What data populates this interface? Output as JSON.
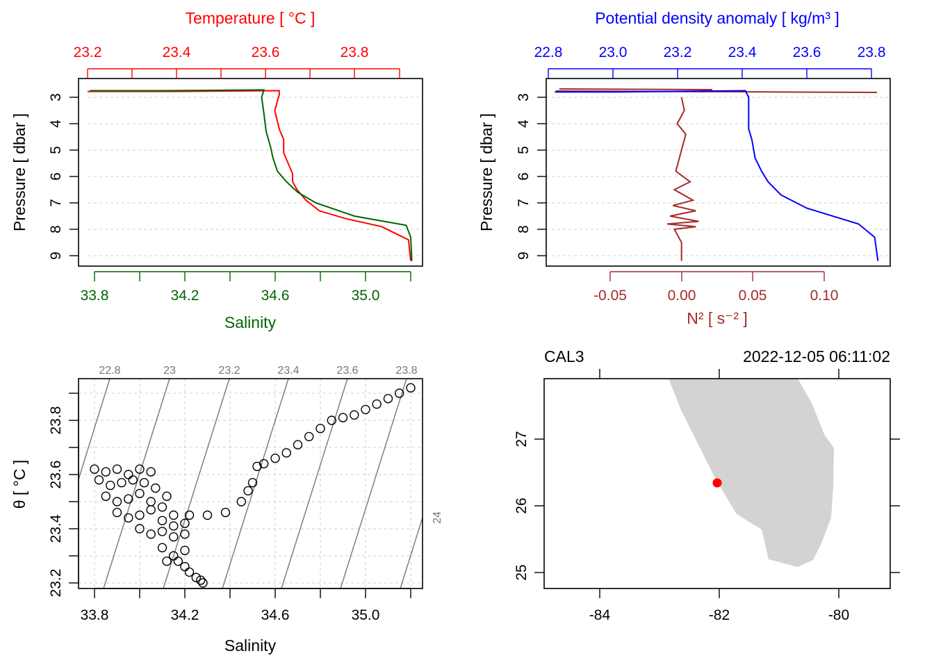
{
  "colors": {
    "temperature": "#ff0000",
    "salinity": "#006400",
    "density": "#0000ff",
    "n2": "#a52a2a",
    "land": "#d3d3d3",
    "station": "#ff0000",
    "points": "#000000",
    "isopycnal": "#777777",
    "grid": "#cfcfcf"
  },
  "panels": {
    "ts_profile": {
      "top_axis_title": "Temperature [ °C ]",
      "bottom_axis_title": "Salinity",
      "y_axis_title": "Pressure [ dbar ]",
      "temperature_ticks": [
        "23.2",
        "23.4",
        "23.6",
        "23.8"
      ],
      "salinity_ticks": [
        "33.8",
        "34.2",
        "34.6",
        "35.0"
      ],
      "pressure_ticks": [
        "3",
        "4",
        "5",
        "6",
        "7",
        "8",
        "9"
      ]
    },
    "density_profile": {
      "top_axis_title": "Potential density anomaly [ kg/m³ ]",
      "bottom_axis_title": "N² [ s⁻² ]",
      "y_axis_title": "Pressure [ dbar ]",
      "density_ticks": [
        "22.8",
        "23.0",
        "23.2",
        "23.4",
        "23.6",
        "23.8"
      ],
      "n2_ticks": [
        "-0.05",
        "0.00",
        "0.05",
        "0.10"
      ],
      "pressure_ticks": [
        "3",
        "4",
        "5",
        "6",
        "7",
        "8",
        "9"
      ]
    },
    "ts_diagram": {
      "x_axis_title": "Salinity",
      "y_axis_title": "θ [ °C ]",
      "x_ticks": [
        "33.8",
        "34.2",
        "34.6",
        "35.0"
      ],
      "y_ticks": [
        "23.2",
        "23.4",
        "23.6",
        "23.8"
      ],
      "isopycnal_labels": [
        "22.8",
        "23",
        "23.2",
        "23.4",
        "23.6",
        "23.8",
        "24"
      ]
    },
    "map": {
      "station": "CAL3",
      "datetime": "2022-12-05 06:11:02",
      "lon_ticks": [
        "-84",
        "-82",
        "-80"
      ],
      "lat_ticks": [
        "25",
        "26",
        "27"
      ]
    }
  },
  "chart_data": [
    {
      "type": "line",
      "title": "",
      "y_axis": "Pressure [ dbar ]",
      "ylim": [
        9.3,
        2.4
      ],
      "series": [
        {
          "name": "Temperature [ °C ]",
          "axis": "top",
          "xlim": [
            23.17,
            23.93
          ],
          "x": [
            23.2,
            23.4,
            23.63,
            23.63,
            23.62,
            23.63,
            23.64,
            23.64,
            23.65,
            23.66,
            23.66,
            23.67,
            23.69,
            23.72,
            23.78,
            23.86,
            23.92,
            23.925
          ],
          "y": [
            2.78,
            2.78,
            2.75,
            2.9,
            3.5,
            4.2,
            4.6,
            5.1,
            5.5,
            5.9,
            6.2,
            6.5,
            6.9,
            7.3,
            7.6,
            7.9,
            8.4,
            9.2
          ]
        },
        {
          "name": "Salinity",
          "axis": "bottom",
          "xlim": [
            33.74,
            35.26
          ],
          "x": [
            33.78,
            34.1,
            34.55,
            34.54,
            34.55,
            34.56,
            34.58,
            34.59,
            34.61,
            34.65,
            34.7,
            34.78,
            34.95,
            35.18,
            35.2,
            35.205
          ],
          "y": [
            2.75,
            2.75,
            2.72,
            3.0,
            3.6,
            4.3,
            4.9,
            5.3,
            5.8,
            6.2,
            6.6,
            7.0,
            7.5,
            7.85,
            8.3,
            9.2
          ]
        }
      ]
    },
    {
      "type": "line",
      "title": "",
      "y_axis": "Pressure [ dbar ]",
      "ylim": [
        9.3,
        2.4
      ],
      "series": [
        {
          "name": "Potential density anomaly [ kg/m³ ]",
          "axis": "top",
          "xlim": [
            22.8,
            23.82
          ],
          "x": [
            22.82,
            23.0,
            23.41,
            23.42,
            23.42,
            23.43,
            23.44,
            23.46,
            23.48,
            23.52,
            23.6,
            23.76,
            23.81,
            23.82
          ],
          "y": [
            2.8,
            2.8,
            2.75,
            3.0,
            4.2,
            4.6,
            5.3,
            5.8,
            6.2,
            6.7,
            7.2,
            7.8,
            8.3,
            9.2
          ]
        },
        {
          "name": "N² [ s⁻² ]",
          "axis": "bottom",
          "xlim": [
            -0.095,
            0.14
          ],
          "x": [
            0.0,
            0.002,
            -0.003,
            0.003,
            0.0,
            -0.004,
            0.006,
            -0.005,
            0.008,
            -0.006,
            0.01,
            -0.008,
            0.012,
            -0.01,
            0.01,
            -0.005,
            0.0,
            0.0
          ],
          "y": [
            3.0,
            3.5,
            4.0,
            4.4,
            5.0,
            5.8,
            6.2,
            6.5,
            6.9,
            7.1,
            7.3,
            7.5,
            7.7,
            7.8,
            7.9,
            8.0,
            8.5,
            9.2
          ]
        }
      ]
    },
    {
      "type": "scatter",
      "title": "",
      "xlabel": "Salinity",
      "ylabel": "θ [ °C ]",
      "xlim": [
        33.7,
        35.26
      ],
      "ylim": [
        23.18,
        23.94
      ],
      "series": [
        {
          "name": "",
          "x": [
            33.8,
            33.85,
            33.9,
            33.95,
            34.0,
            34.05,
            33.82,
            33.87,
            33.92,
            33.97,
            34.02,
            34.07,
            34.12,
            33.85,
            33.9,
            33.95,
            34.0,
            34.05,
            34.1,
            34.15,
            33.9,
            33.95,
            34.0,
            34.05,
            34.1,
            34.15,
            34.2,
            34.0,
            34.05,
            34.1,
            34.15,
            34.2,
            34.1,
            34.15,
            34.2,
            34.12,
            34.17,
            34.2,
            34.22,
            34.25,
            34.27,
            34.28,
            34.52,
            34.55,
            34.6,
            34.65,
            34.7,
            34.75,
            34.8,
            34.85,
            34.9,
            34.95,
            35.0,
            35.05,
            35.1,
            35.15,
            35.2
          ],
          "y": [
            23.62,
            23.61,
            23.62,
            23.6,
            23.62,
            23.61,
            23.58,
            23.56,
            23.57,
            23.58,
            23.57,
            23.55,
            23.52,
            23.52,
            23.5,
            23.51,
            23.53,
            23.5,
            23.48,
            23.45,
            23.46,
            23.44,
            23.45,
            23.47,
            23.43,
            23.41,
            23.42,
            23.4,
            23.38,
            23.39,
            23.37,
            23.38,
            23.33,
            23.3,
            23.32,
            23.28,
            23.28,
            23.26,
            23.24,
            23.22,
            23.21,
            23.2,
            23.63,
            23.64,
            23.66,
            23.68,
            23.71,
            23.74,
            23.77,
            23.8,
            23.81,
            23.82,
            23.84,
            23.86,
            23.88,
            23.9,
            23.92
          ]
        },
        {
          "name": "",
          "x": [
            34.22,
            34.3,
            34.38,
            34.45,
            34.48,
            34.5
          ],
          "y": [
            23.45,
            23.45,
            23.46,
            23.5,
            23.54,
            23.57
          ]
        }
      ]
    }
  ]
}
